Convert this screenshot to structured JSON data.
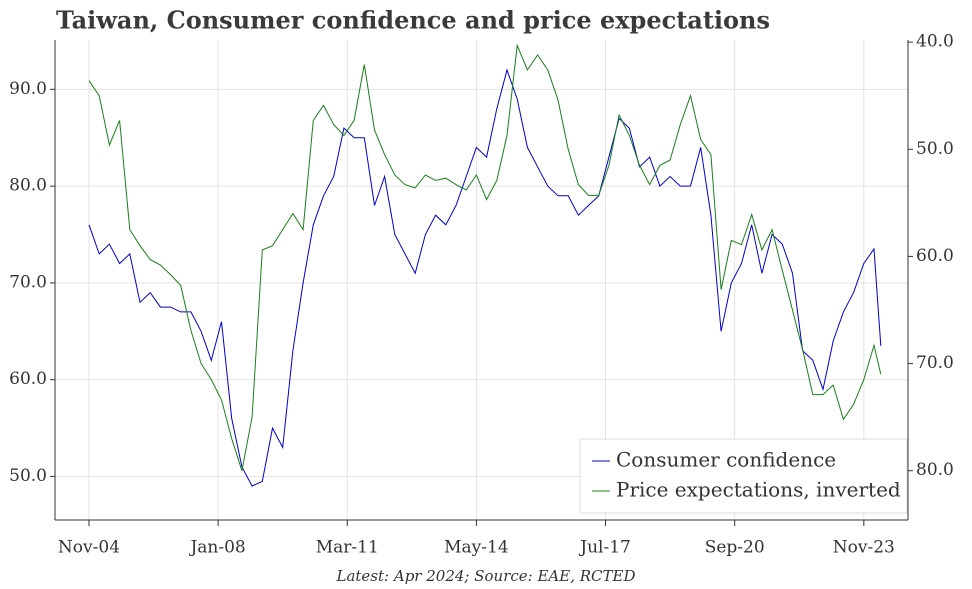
{
  "chart_data": {
    "type": "line",
    "title": "Taiwan, Consumer confidence and price expectations",
    "note": "Latest: Apr 2024; Source: EAE, RCTED",
    "x": [
      "Nov-04",
      "Feb-05",
      "May-05",
      "Aug-05",
      "Nov-05",
      "Feb-06",
      "May-06",
      "Aug-06",
      "Nov-06",
      "Feb-07",
      "May-07",
      "Aug-07",
      "Nov-07",
      "Feb-08",
      "May-08",
      "Aug-08",
      "Nov-08",
      "Feb-09",
      "May-09",
      "Aug-09",
      "Nov-09",
      "Feb-10",
      "May-10",
      "Aug-10",
      "Nov-10",
      "Feb-11",
      "May-11",
      "Aug-11",
      "Nov-11",
      "Feb-12",
      "May-12",
      "Aug-12",
      "Nov-12",
      "Feb-13",
      "May-13",
      "Aug-13",
      "Nov-13",
      "Feb-14",
      "May-14",
      "Aug-14",
      "Nov-14",
      "Feb-15",
      "May-15",
      "Aug-15",
      "Nov-15",
      "Feb-16",
      "May-16",
      "Aug-16",
      "Nov-16",
      "Feb-17",
      "May-17",
      "Aug-17",
      "Nov-17",
      "Feb-18",
      "May-18",
      "Aug-18",
      "Nov-18",
      "Feb-19",
      "May-19",
      "Aug-19",
      "Nov-19",
      "Feb-20",
      "May-20",
      "Aug-20",
      "Nov-20",
      "Feb-21",
      "May-21",
      "Aug-21",
      "Nov-21",
      "Feb-22",
      "May-22",
      "Aug-22",
      "Nov-22",
      "Feb-23",
      "May-23",
      "Aug-23",
      "Nov-23",
      "Feb-24",
      "Apr-24"
    ],
    "series": [
      {
        "name": "Consumer confidence",
        "color": "#0000cc",
        "axis": "y",
        "values": [
          76,
          73,
          74,
          72,
          73,
          68,
          69,
          67.5,
          67.5,
          67,
          67,
          65,
          62,
          66,
          56,
          51,
          49,
          49.5,
          55,
          53,
          63,
          70,
          76,
          79,
          81,
          86,
          85,
          85,
          78,
          81,
          75,
          73,
          71,
          75,
          77,
          76,
          78,
          81,
          84,
          83,
          88,
          92,
          89,
          84,
          82,
          80,
          79,
          79,
          77,
          78,
          79,
          83,
          87,
          86,
          82,
          83,
          80,
          81,
          80,
          80,
          84,
          77,
          65,
          70,
          72,
          76,
          71,
          75,
          74,
          71,
          63,
          62,
          59,
          64,
          67,
          69,
          72,
          73.5,
          63.5
        ]
      },
      {
        "name": "Price expectations, inverted",
        "color": "#1a7f1a",
        "axis": "y2",
        "values": [
          43.6,
          45,
          49.6,
          47.3,
          57.5,
          59,
          60.3,
          60.8,
          61.7,
          62.7,
          66.9,
          70,
          71.5,
          73.4,
          77,
          80,
          75,
          59.4,
          59,
          57.5,
          56,
          57.5,
          47.3,
          45.9,
          47.7,
          48.7,
          47.3,
          42.1,
          48.2,
          50.5,
          52.4,
          53.3,
          53.6,
          52.4,
          52.9,
          52.7,
          53.3,
          53.8,
          52.4,
          54.7,
          52.9,
          48.7,
          40.3,
          42.6,
          41.2,
          42.6,
          45.4,
          50,
          53.3,
          54.3,
          54.3,
          51.5,
          46.8,
          48.7,
          51.5,
          53.3,
          51.5,
          51,
          47.7,
          45,
          49.1,
          50.5,
          63.1,
          58.5,
          58.9,
          56.1,
          59.4,
          57.5,
          61.3,
          65,
          68.7,
          72.9,
          72.9,
          72,
          75.2,
          73.8,
          71.5,
          68.3,
          71
        ]
      }
    ],
    "xlim": [
      "Jan-04",
      "Dec-24"
    ],
    "xticks": [
      "Nov-04",
      "Jan-08",
      "Mar-11",
      "May-14",
      "Jul-17",
      "Sep-20",
      "Nov-23"
    ],
    "ylim": [
      45.5,
      95.1
    ],
    "yticks": [
      {
        "value": 50,
        "label": "50.0"
      },
      {
        "value": 60,
        "label": "60.0"
      },
      {
        "value": 70,
        "label": "70.0"
      },
      {
        "value": 80,
        "label": "80.0"
      },
      {
        "value": 90,
        "label": "90.0"
      }
    ],
    "y2lim": [
      84.6,
      39.8
    ],
    "y2ticks": [
      {
        "value": 40,
        "label": "40.0"
      },
      {
        "value": 50,
        "label": "50.0"
      },
      {
        "value": 60,
        "label": "60.0"
      },
      {
        "value": 70,
        "label": "70.0"
      },
      {
        "value": 80,
        "label": "80.0"
      }
    ],
    "grid": true,
    "legend": "lower right"
  }
}
